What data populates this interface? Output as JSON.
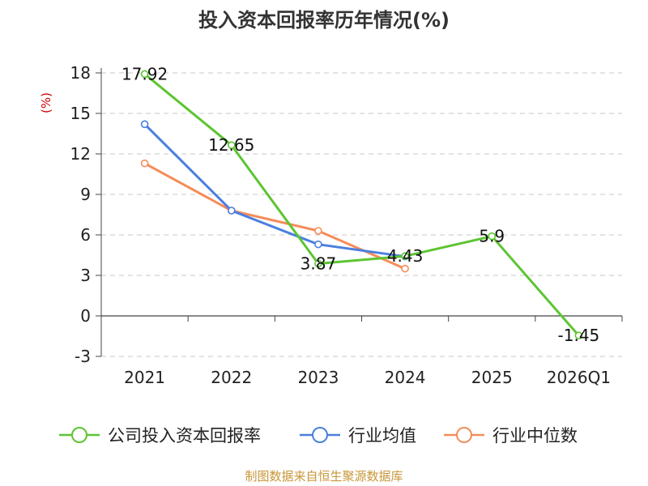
{
  "chart_data": {
    "type": "line",
    "title": "投入资本回报率历年情况(%)",
    "ylabel": "(%)",
    "categories": [
      "2021",
      "2022",
      "2023",
      "2024",
      "2025",
      "2026Q1"
    ],
    "yticks": [
      "18",
      "15",
      "12",
      "9",
      "6",
      "3",
      "0",
      "-3"
    ],
    "ylim": [
      -3,
      18
    ],
    "grid": true,
    "legend_position": "bottom",
    "series": [
      {
        "name": "公司投入资本回报率",
        "color": "#5cc531",
        "values": [
          17.92,
          12.65,
          3.87,
          4.43,
          5.9,
          -1.45
        ],
        "labels": [
          "17.92",
          "12.65",
          "3.87",
          "4.43",
          "5.9",
          "-1.45"
        ]
      },
      {
        "name": "行业均值",
        "color": "#4a7fe0",
        "values": [
          14.2,
          7.8,
          5.3,
          4.4,
          null,
          null
        ]
      },
      {
        "name": "行业中位数",
        "color": "#f58c5a",
        "values": [
          11.3,
          7.8,
          6.3,
          3.5,
          null,
          null
        ]
      }
    ]
  },
  "source": "制图数据来自恒生聚源数据库"
}
